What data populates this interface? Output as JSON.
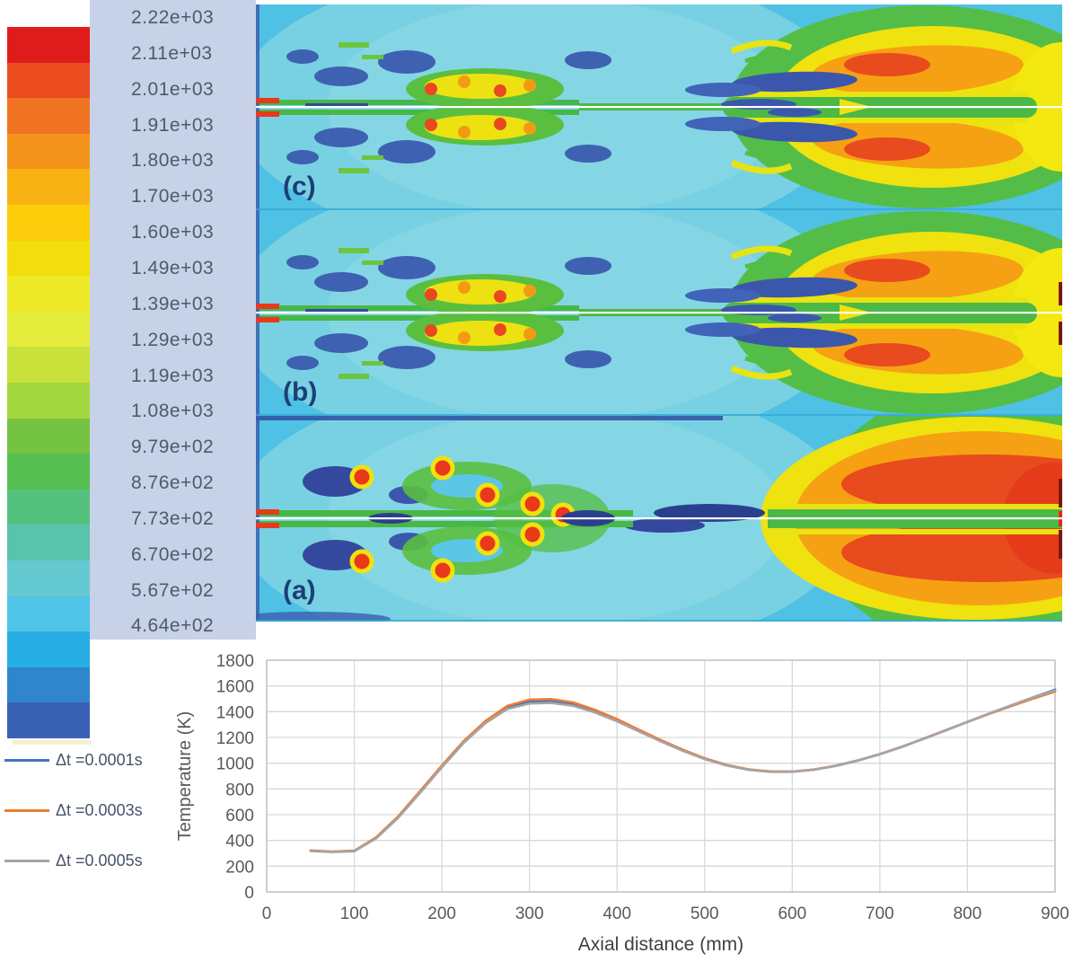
{
  "figure": {
    "panel_labels": [
      "(c)",
      "(b)",
      "(a)"
    ]
  },
  "colorbar": {
    "labels": [
      "2.22e+03",
      "2.11e+03",
      "2.01e+03",
      "1.91e+03",
      "1.80e+03",
      "1.70e+03",
      "1.60e+03",
      "1.49e+03",
      "1.39e+03",
      "1.29e+03",
      "1.19e+03",
      "1.08e+03",
      "9.79e+02",
      "8.76e+02",
      "7.73e+02",
      "6.70e+02",
      "5.67e+02",
      "4.64e+02"
    ],
    "colors": [
      "#E01C1B",
      "#EA4C20",
      "#F07322",
      "#F3931C",
      "#F8B313",
      "#FBCD0B",
      "#F2DE0C",
      "#EEEA28",
      "#E4EC3C",
      "#C8E23B",
      "#A3D73E",
      "#75C342",
      "#57BE52",
      "#55C17F",
      "#59C4AB",
      "#65C9D2",
      "#4FC4E6",
      "#27AEE4",
      "#2F86CC",
      "#3A62B4"
    ],
    "strip_bg": "#C7D1E8",
    "text_color": "#4D5A6E"
  },
  "chart_data": [
    {
      "type": "heatmap",
      "subtype": "temperature-contour-panels",
      "panels": [
        "(c)",
        "(b)",
        "(a)"
      ],
      "colorbar_labels": [
        "2.22e+03",
        "2.11e+03",
        "2.01e+03",
        "1.91e+03",
        "1.80e+03",
        "1.70e+03",
        "1.60e+03",
        "1.49e+03",
        "1.39e+03",
        "1.29e+03",
        "1.19e+03",
        "1.08e+03",
        "9.79e+02",
        "8.76e+02",
        "7.73e+02",
        "6.70e+02",
        "5.67e+02",
        "4.64e+02"
      ],
      "value_range": [
        464,
        2220
      ]
    },
    {
      "type": "line",
      "title": "",
      "xlabel": "Axial distance (mm)",
      "ylabel": "Temperature (K)",
      "xlim": [
        0,
        900
      ],
      "ylim": [
        0,
        1800
      ],
      "xticks": [
        0,
        100,
        200,
        300,
        400,
        500,
        600,
        700,
        800,
        900
      ],
      "yticks": [
        0,
        200,
        400,
        600,
        800,
        1000,
        1200,
        1400,
        1600,
        1800
      ],
      "grid": true,
      "legend_position": "left",
      "x": [
        50,
        75,
        100,
        125,
        150,
        175,
        200,
        225,
        250,
        275,
        300,
        325,
        350,
        375,
        400,
        425,
        450,
        475,
        500,
        525,
        550,
        575,
        600,
        625,
        650,
        675,
        700,
        725,
        750,
        775,
        800,
        825,
        850,
        875,
        900
      ],
      "series": [
        {
          "name": "Δt =0.0001s",
          "color": "#4472C4",
          "values": [
            320,
            312,
            318,
            420,
            580,
            775,
            975,
            1165,
            1320,
            1432,
            1478,
            1482,
            1458,
            1403,
            1333,
            1253,
            1174,
            1100,
            1035,
            984,
            950,
            934,
            934,
            950,
            980,
            1021,
            1070,
            1127,
            1190,
            1255,
            1321,
            1386,
            1449,
            1511,
            1571
          ]
        },
        {
          "name": "Δt =0.0003s",
          "color": "#ED7D31",
          "values": [
            322,
            314,
            320,
            424,
            586,
            782,
            982,
            1172,
            1330,
            1446,
            1494,
            1498,
            1472,
            1414,
            1342,
            1260,
            1180,
            1105,
            1039,
            987,
            952,
            936,
            935,
            951,
            981,
            1022,
            1071,
            1128,
            1191,
            1256,
            1320,
            1383,
            1443,
            1502,
            1556
          ]
        },
        {
          "name": "Δt =0.0005s",
          "color": "#A5A5A5",
          "values": [
            318,
            310,
            316,
            416,
            574,
            768,
            968,
            1158,
            1312,
            1422,
            1464,
            1468,
            1446,
            1393,
            1325,
            1247,
            1169,
            1096,
            1032,
            982,
            948,
            933,
            933,
            949,
            979,
            1020,
            1069,
            1126,
            1189,
            1254,
            1320,
            1386,
            1450,
            1512,
            1564
          ]
        }
      ],
      "axis_text_color": "#595959",
      "gridline_color": "#D9D9D9",
      "border_color": "#BFBFBF"
    }
  ]
}
